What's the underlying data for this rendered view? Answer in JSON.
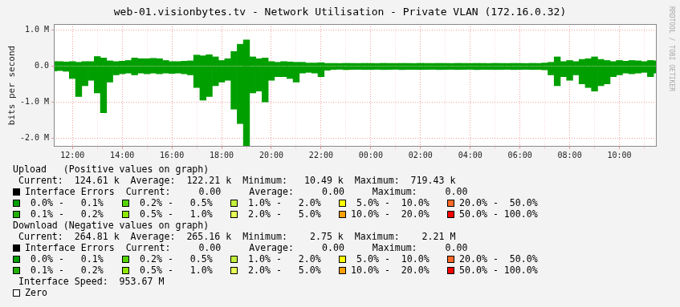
{
  "chart_data": {
    "type": "bar",
    "title": "web-01.visionbytes.tv - Network Utilisation - Private VLAN (172.16.0.32)",
    "y_label": "bits per second",
    "categories": [
      null,
      null,
      null,
      "12:00",
      null,
      null,
      null,
      null,
      null,
      null,
      null,
      "14:00",
      null,
      null,
      null,
      null,
      null,
      null,
      null,
      "16:00",
      null,
      null,
      null,
      null,
      null,
      null,
      null,
      "18:00",
      null,
      null,
      null,
      null,
      null,
      null,
      null,
      "20:00",
      null,
      null,
      null,
      null,
      null,
      null,
      null,
      "22:00",
      null,
      null,
      null,
      null,
      null,
      null,
      null,
      "00:00",
      null,
      null,
      null,
      null,
      null,
      null,
      null,
      "02:00",
      null,
      null,
      null,
      null,
      null,
      null,
      null,
      "04:00",
      null,
      null,
      null,
      null,
      null,
      null,
      null,
      "06:00",
      null,
      null,
      null,
      null,
      null,
      null,
      null,
      "08:00",
      null,
      null,
      null,
      null,
      null,
      null,
      null,
      "10:00",
      null,
      null,
      null,
      null,
      null,
      null
    ],
    "series": [
      {
        "color": "#009f00",
        "values": [
          120000,
          120000,
          110000,
          120000,
          100000,
          120000,
          120000,
          260000,
          220000,
          140000,
          120000,
          130000,
          150000,
          220000,
          200000,
          200000,
          210000,
          200000,
          150000,
          120000,
          120000,
          130000,
          140000,
          300000,
          280000,
          310000,
          250000,
          150000,
          200000,
          400000,
          600000,
          720000,
          250000,
          200000,
          220000,
          120000,
          100000,
          120000,
          110000,
          100000,
          100000,
          80000,
          80000,
          90000,
          70000,
          70000,
          68000,
          72000,
          70000,
          69000,
          71000,
          70000,
          68000,
          72000,
          70000,
          69000,
          71000,
          70000,
          68000,
          72000,
          70000,
          69000,
          71000,
          70000,
          68000,
          72000,
          70000,
          69000,
          71000,
          70000,
          68000,
          72000,
          70000,
          69000,
          71000,
          70000,
          68000,
          72000,
          70000,
          80000,
          100000,
          250000,
          120000,
          150000,
          120000,
          180000,
          200000,
          250000,
          180000,
          150000,
          120000,
          150000,
          130000,
          150000,
          140000,
          120000,
          150000,
          140000
        ]
      },
      {
        "color": "#009f00",
        "values": [
          -140000,
          -130000,
          -150000,
          -350000,
          -850000,
          -550000,
          -400000,
          -750000,
          -1300000,
          -450000,
          -250000,
          -220000,
          -200000,
          -250000,
          -200000,
          -220000,
          -200000,
          -220000,
          -200000,
          -210000,
          -200000,
          -220000,
          -250000,
          -600000,
          -950000,
          -850000,
          -550000,
          -450000,
          -400000,
          -1200000,
          -1600000,
          -2210000,
          -750000,
          -700000,
          -1000000,
          -400000,
          -300000,
          -300000,
          -350000,
          -450000,
          -200000,
          -180000,
          -200000,
          -300000,
          -120000,
          -100000,
          -95000,
          -105000,
          -100000,
          -98000,
          -102000,
          -100000,
          -97000,
          -103000,
          -100000,
          -96000,
          -104000,
          -100000,
          -99000,
          -101000,
          -100000,
          -97000,
          -103000,
          -100000,
          -98000,
          -102000,
          -100000,
          -96000,
          -104000,
          -100000,
          -99000,
          -101000,
          -100000,
          -97000,
          -103000,
          -100000,
          -98000,
          -102000,
          -100000,
          -110000,
          -250000,
          -550000,
          -300000,
          -400000,
          -250000,
          -500000,
          -600000,
          -700000,
          -550000,
          -500000,
          -300000,
          -250000,
          -200000,
          -220000,
          -200000,
          -180000,
          -300000,
          -200000
        ]
      }
    ],
    "stacked": true,
    "grid": true,
    "ylim": [
      -2240000,
      1160000
    ],
    "yticks": [
      {
        "value": 1000000,
        "label": "1.0 M"
      },
      {
        "value": 0,
        "label": "0.0"
      },
      {
        "value": -1000000,
        "label": "-1.0 M"
      },
      {
        "value": -2000000,
        "label": "-2.0 M"
      }
    ]
  },
  "side_text": "RRDTOOL / TOBI OETIKER",
  "footer": {
    "sections": [
      {
        "heading": "Upload   (Positive values on graph)",
        "stats": " Current:  124.61 k  Average:  122.21 k  Minimum:   10.49 k  Maximum:  719.43 k",
        "errors": {
          "color": "#000000",
          "text": "Interface Errors  Current:     0.00     Average:     0.00     Maximum:     0.00"
        },
        "bands": [
          [
            {
              "color": "#009f00",
              "label": " 0.0% -   0.1%"
            },
            {
              "color": "#55d400",
              "label": " 0.2% -   0.5%"
            },
            {
              "color": "#c4f23c",
              "label": " 1.0% -   2.0%"
            },
            {
              "color": "#ffff00",
              "label": " 5.0% -  10.0%"
            },
            {
              "color": "#ff6a28",
              "label": "20.0% -  50.0%"
            }
          ],
          [
            {
              "color": "#22b000",
              "label": " 0.1% -   0.2%"
            },
            {
              "color": "#8ee800",
              "label": " 0.5% -   1.0%"
            },
            {
              "color": "#e6ff55",
              "label": " 2.0% -   5.0%"
            },
            {
              "color": "#ffa000",
              "label": "10.0% -  20.0%"
            },
            {
              "color": "#ff0000",
              "label": "50.0% - 100.0%"
            }
          ]
        ]
      },
      {
        "heading": "Download (Negative values on graph)",
        "stats": " Current:  264.81 k  Average:  265.16 k  Minimum:    2.75 k  Maximum:    2.21 M",
        "errors": {
          "color": "#000000",
          "text": "Interface Errors  Current:     0.00     Average:     0.00     Maximum:     0.00"
        },
        "bands": [
          [
            {
              "color": "#009f00",
              "label": " 0.0% -   0.1%"
            },
            {
              "color": "#55d400",
              "label": " 0.2% -   0.5%"
            },
            {
              "color": "#c4f23c",
              "label": " 1.0% -   2.0%"
            },
            {
              "color": "#ffff00",
              "label": " 5.0% -  10.0%"
            },
            {
              "color": "#ff6a28",
              "label": "20.0% -  50.0%"
            }
          ],
          [
            {
              "color": "#22b000",
              "label": " 0.1% -   0.2%"
            },
            {
              "color": "#8ee800",
              "label": " 0.5% -   1.0%"
            },
            {
              "color": "#e6ff55",
              "label": " 2.0% -   5.0%"
            },
            {
              "color": "#ffa000",
              "label": "10.0% -  20.0%"
            },
            {
              "color": "#ff0000",
              "label": "50.0% - 100.0%"
            }
          ]
        ]
      }
    ],
    "speed": " Interface Speed:  953.67 M",
    "zero": {
      "color": "#ffffff",
      "text": "Zero"
    }
  }
}
